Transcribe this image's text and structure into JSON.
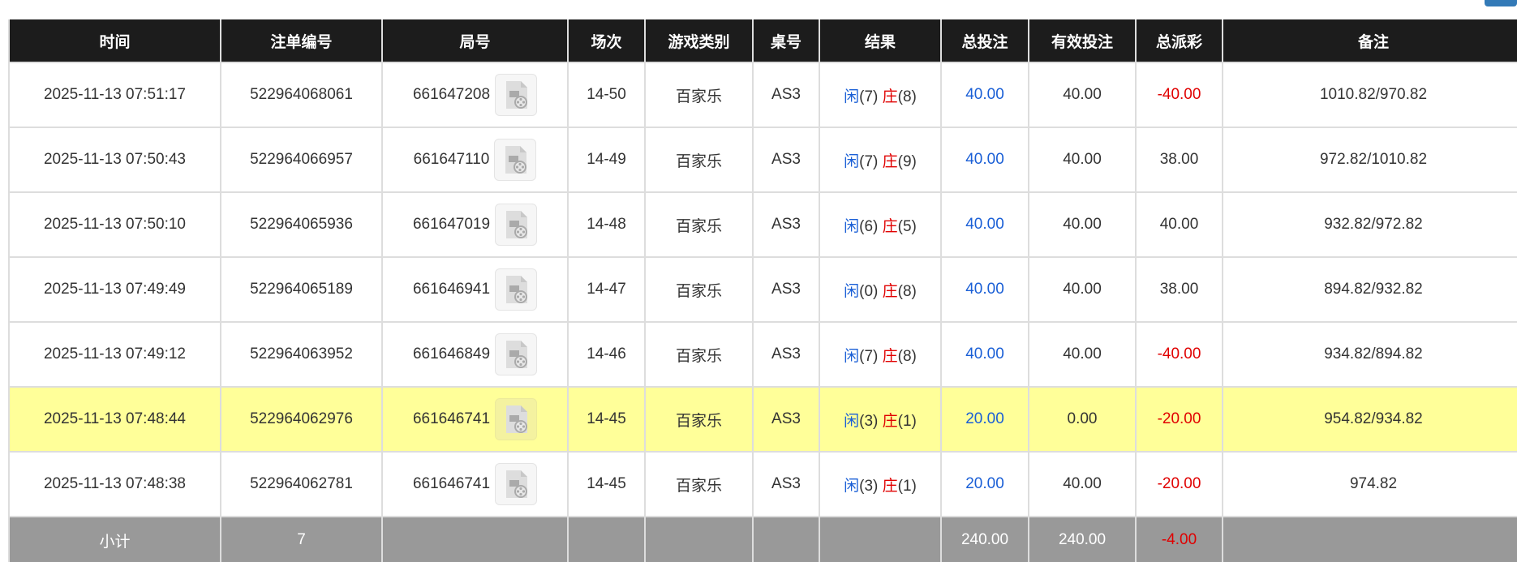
{
  "headers": [
    "时间",
    "注单编号",
    "局号",
    "场次",
    "游戏类别",
    "桌号",
    "结果",
    "总投注",
    "有效投注",
    "总派彩",
    "备注"
  ],
  "result_labels": {
    "player": "闲",
    "banker": "庄"
  },
  "colors": {
    "header_bg": "#1c1c1c",
    "highlight_row": "#ffff99",
    "subtotal_bg": "#999999",
    "blue": "#1a5fd6",
    "red": "#e00000"
  },
  "rows": [
    {
      "time": "2025-11-13 07:51:17",
      "bet_id": "522964068061",
      "round": "661647208",
      "shoe": "14-50",
      "game": "百家乐",
      "table": "AS3",
      "player": "(7)",
      "banker": "(8)",
      "total_bet": "40.00",
      "valid_bet": "40.00",
      "payout": "-40.00",
      "payout_neg": true,
      "note": "1010.82/970.82"
    },
    {
      "time": "2025-11-13 07:50:43",
      "bet_id": "522964066957",
      "round": "661647110",
      "shoe": "14-49",
      "game": "百家乐",
      "table": "AS3",
      "player": "(7)",
      "banker": "(9)",
      "total_bet": "40.00",
      "valid_bet": "40.00",
      "payout": "38.00",
      "payout_neg": false,
      "note": "972.82/1010.82"
    },
    {
      "time": "2025-11-13 07:50:10",
      "bet_id": "522964065936",
      "round": "661647019",
      "shoe": "14-48",
      "game": "百家乐",
      "table": "AS3",
      "player": "(6)",
      "banker": "(5)",
      "total_bet": "40.00",
      "valid_bet": "40.00",
      "payout": "40.00",
      "payout_neg": false,
      "note": "932.82/972.82"
    },
    {
      "time": "2025-11-13 07:49:49",
      "bet_id": "522964065189",
      "round": "661646941",
      "shoe": "14-47",
      "game": "百家乐",
      "table": "AS3",
      "player": "(0)",
      "banker": "(8)",
      "total_bet": "40.00",
      "valid_bet": "40.00",
      "payout": "38.00",
      "payout_neg": false,
      "note": "894.82/932.82"
    },
    {
      "time": "2025-11-13 07:49:12",
      "bet_id": "522964063952",
      "round": "661646849",
      "shoe": "14-46",
      "game": "百家乐",
      "table": "AS3",
      "player": "(7)",
      "banker": "(8)",
      "total_bet": "40.00",
      "valid_bet": "40.00",
      "payout": "-40.00",
      "payout_neg": true,
      "note": "934.82/894.82"
    },
    {
      "time": "2025-11-13 07:48:44",
      "bet_id": "522964062976",
      "round": "661646741",
      "shoe": "14-45",
      "game": "百家乐",
      "table": "AS3",
      "player": "(3)",
      "banker": "(1)",
      "total_bet": "20.00",
      "valid_bet": "0.00",
      "payout": "-20.00",
      "payout_neg": true,
      "note": "954.82/934.82",
      "highlight": true
    },
    {
      "time": "2025-11-13 07:48:38",
      "bet_id": "522964062781",
      "round": "661646741",
      "shoe": "14-45",
      "game": "百家乐",
      "table": "AS3",
      "player": "(3)",
      "banker": "(1)",
      "total_bet": "20.00",
      "valid_bet": "40.00",
      "payout": "-20.00",
      "payout_neg": true,
      "note": "974.82"
    }
  ],
  "subtotal": {
    "label": "小计",
    "count": "7",
    "total_bet": "240.00",
    "valid_bet": "240.00",
    "payout": "-4.00"
  }
}
